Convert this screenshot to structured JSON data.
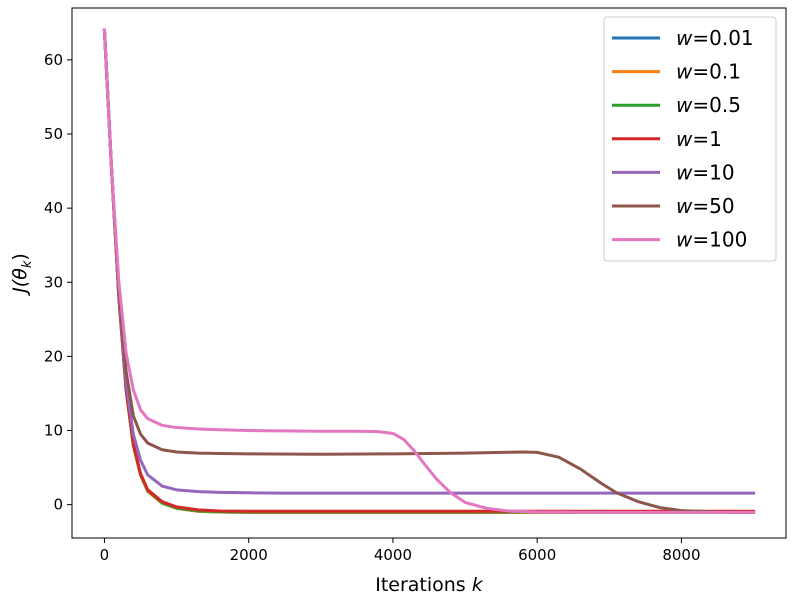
{
  "chart_data": {
    "type": "line",
    "xlabel": "Iterations ",
    "xlabel_var": "k",
    "ylabel_parts": [
      "J(",
      "θ",
      "k",
      ")"
    ],
    "xlim": [
      -450,
      9450
    ],
    "ylim": [
      -4.5,
      67
    ],
    "xticks": [
      0,
      2000,
      4000,
      6000,
      8000
    ],
    "yticks": [
      0,
      10,
      20,
      30,
      40,
      50,
      60
    ],
    "xtick_labels": [
      "0",
      "2000",
      "4000",
      "6000",
      "8000"
    ],
    "ytick_labels": [
      "0",
      "10",
      "20",
      "30",
      "40",
      "50",
      "60"
    ],
    "grid": false,
    "legend_position": "top-right",
    "series": [
      {
        "name": "0.01",
        "color": "#1f77b4",
        "x": [
          0,
          100,
          200,
          300,
          400,
          500,
          600,
          800,
          1000,
          1300,
          1600,
          2000,
          3000,
          4000,
          5000,
          6000,
          7000,
          8000,
          9000
        ],
        "y": [
          64.0,
          45.0,
          28.0,
          15.5,
          8.0,
          4.0,
          1.8,
          0.2,
          -0.5,
          -0.9,
          -1.0,
          -1.05,
          -1.05,
          -1.05,
          -1.05,
          -1.05,
          -1.05,
          -1.05,
          -1.05
        ]
      },
      {
        "name": "0.1",
        "color": "#ff7f0e",
        "x": [
          0,
          100,
          200,
          300,
          400,
          500,
          600,
          800,
          1000,
          1300,
          1600,
          2000,
          3000,
          4000,
          5000,
          6000,
          7000,
          8000,
          9000
        ],
        "y": [
          64.0,
          45.0,
          28.0,
          15.5,
          8.0,
          4.0,
          1.8,
          0.2,
          -0.5,
          -0.9,
          -1.0,
          -1.05,
          -1.05,
          -1.05,
          -1.05,
          -1.05,
          -1.05,
          -1.05,
          -1.05
        ]
      },
      {
        "name": "0.5",
        "color": "#2ca02c",
        "x": [
          0,
          100,
          200,
          300,
          400,
          500,
          600,
          800,
          1000,
          1300,
          1600,
          2000,
          3000,
          4000,
          5000,
          6000,
          7000,
          8000,
          9000
        ],
        "y": [
          64.0,
          45.0,
          28.0,
          15.6,
          8.1,
          4.1,
          1.9,
          0.25,
          -0.45,
          -0.85,
          -0.95,
          -1.0,
          -1.0,
          -1.0,
          -1.0,
          -1.0,
          -1.0,
          -1.0,
          -1.0
        ]
      },
      {
        "name": "1",
        "color": "#d62728",
        "x": [
          0,
          100,
          200,
          300,
          400,
          500,
          600,
          800,
          1000,
          1300,
          1600,
          2000,
          3000,
          4000,
          5000,
          6000,
          7000,
          8000,
          9000
        ],
        "y": [
          64.0,
          45.0,
          28.0,
          15.6,
          8.2,
          4.2,
          2.0,
          0.4,
          -0.3,
          -0.7,
          -0.85,
          -0.9,
          -0.9,
          -0.9,
          -0.9,
          -0.9,
          -0.9,
          -0.9,
          -0.9
        ]
      },
      {
        "name": "10",
        "color": "#9467bd",
        "x": [
          0,
          100,
          200,
          300,
          400,
          500,
          600,
          800,
          1000,
          1300,
          1600,
          2000,
          2500,
          3000,
          4000,
          5000,
          6000,
          7000,
          8000,
          9000
        ],
        "y": [
          64.0,
          45.0,
          28.5,
          16.5,
          9.5,
          6.0,
          4.0,
          2.5,
          2.0,
          1.75,
          1.65,
          1.6,
          1.55,
          1.55,
          1.55,
          1.55,
          1.55,
          1.55,
          1.55,
          1.55
        ]
      },
      {
        "name": "50",
        "color": "#8c564b",
        "x": [
          0,
          100,
          200,
          300,
          400,
          500,
          600,
          800,
          1000,
          1300,
          1600,
          2000,
          3000,
          4000,
          5000,
          5800,
          6000,
          6300,
          6600,
          6900,
          7100,
          7400,
          7700,
          8000,
          8500,
          9000
        ],
        "y": [
          64.0,
          45.0,
          29.0,
          18.0,
          12.0,
          9.5,
          8.3,
          7.4,
          7.1,
          6.95,
          6.9,
          6.85,
          6.8,
          6.85,
          6.95,
          7.1,
          7.05,
          6.4,
          4.8,
          2.8,
          1.6,
          0.4,
          -0.4,
          -0.8,
          -1.0,
          -1.05
        ]
      },
      {
        "name": "100",
        "color": "#e377c2",
        "x": [
          0,
          100,
          200,
          300,
          400,
          500,
          600,
          800,
          1000,
          1300,
          1600,
          2000,
          3000,
          3500,
          3800,
          4000,
          4150,
          4300,
          4450,
          4600,
          4800,
          5000,
          5300,
          5600,
          6000,
          7000,
          8000,
          9000
        ],
        "y": [
          64.0,
          45.0,
          30.0,
          20.5,
          15.5,
          12.8,
          11.6,
          10.7,
          10.4,
          10.2,
          10.1,
          10.0,
          9.9,
          9.9,
          9.85,
          9.6,
          8.8,
          7.2,
          5.3,
          3.5,
          1.6,
          0.3,
          -0.5,
          -0.85,
          -1.0,
          -1.05,
          -1.05,
          -1.05
        ]
      }
    ]
  }
}
